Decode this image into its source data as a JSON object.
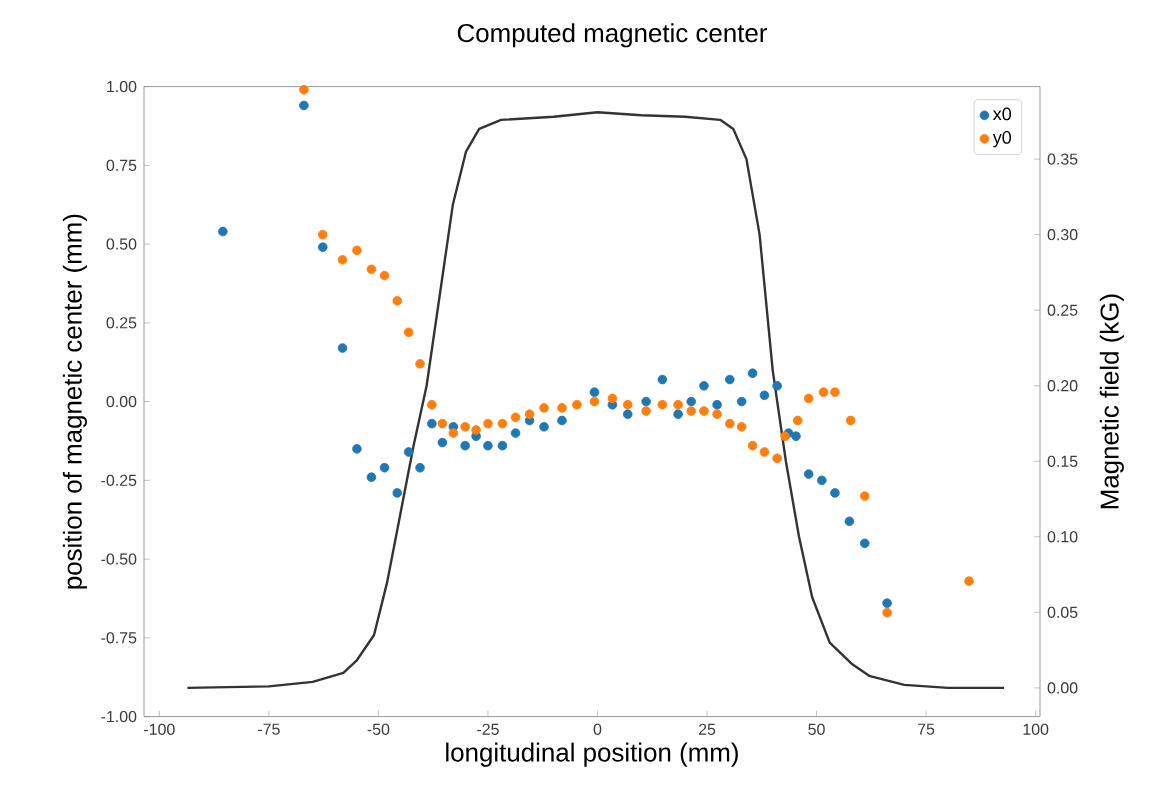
{
  "chart_data": {
    "type": "scatter",
    "title": "Computed magnetic center",
    "xlabel": "longitudinal position (mm)",
    "ylabel": "position of magnetic center (mm)",
    "y2label": "Magnetic field (kG)",
    "xlim": [
      -103.5,
      101
    ],
    "xticks": [
      -100,
      -75,
      -50,
      -25,
      0,
      25,
      50,
      75,
      100
    ],
    "ylim": [
      -1,
      1
    ],
    "yticks": [
      {
        "value": -1,
        "label": "-1.00"
      },
      {
        "value": -0.75,
        "label": "-0.75"
      },
      {
        "value": -0.5,
        "label": "-0.50"
      },
      {
        "value": -0.25,
        "label": "-0.25"
      },
      {
        "value": 0,
        "label": "0.00"
      },
      {
        "value": 0.25,
        "label": "0.25"
      },
      {
        "value": 0.5,
        "label": "0.50"
      },
      {
        "value": 0.75,
        "label": "0.75"
      },
      {
        "value": 1,
        "label": "1.00"
      }
    ],
    "y2lim": [
      -0.019,
      0.398
    ],
    "y2ticks": [
      {
        "value": 0,
        "label": "0.00"
      },
      {
        "value": 0.05,
        "label": "0.05"
      },
      {
        "value": 0.1,
        "label": "0.10"
      },
      {
        "value": 0.15,
        "label": "0.15"
      },
      {
        "value": 0.2,
        "label": "0.20"
      },
      {
        "value": 0.25,
        "label": "0.25"
      },
      {
        "value": 0.3,
        "label": "0.30"
      },
      {
        "value": 0.35,
        "label": "0.35"
      }
    ],
    "legend": "top right",
    "series": [
      {
        "name": "x0",
        "color": "#1f77b4",
        "marker": "circle",
        "x": [
          -85.5,
          -67.0,
          -62.7,
          -58.2,
          -54.9,
          -51.6,
          -48.6,
          -45.7,
          -43.1,
          -40.5,
          -37.8,
          -35.4,
          -32.9,
          -30.2,
          -27.7,
          -25.0,
          -21.7,
          -18.7,
          -15.5,
          -12.2,
          -8.1,
          -0.7,
          3.4,
          6.9,
          11.1,
          14.8,
          18.4,
          21.4,
          24.3,
          27.3,
          30.2,
          32.9,
          35.4,
          38.1,
          41.0,
          43.6,
          45.3,
          48.2,
          51.2,
          54.2,
          57.5,
          61.0,
          66.1
        ],
        "values": [
          0.54,
          0.94,
          0.49,
          0.17,
          -0.15,
          -0.24,
          -0.21,
          -0.29,
          -0.16,
          -0.21,
          -0.07,
          -0.13,
          -0.08,
          -0.14,
          -0.11,
          -0.14,
          -0.14,
          -0.1,
          -0.06,
          -0.08,
          -0.06,
          0.03,
          -0.01,
          -0.04,
          0.0,
          0.07,
          -0.04,
          0.0,
          0.05,
          -0.01,
          0.07,
          0.0,
          0.09,
          0.02,
          0.05,
          -0.1,
          -0.11,
          -0.23,
          -0.25,
          -0.29,
          -0.38,
          -0.45,
          -0.64
        ]
      },
      {
        "name": "y0",
        "color": "#ff7f0e",
        "marker": "circle",
        "x": [
          -67.0,
          -62.7,
          -58.2,
          -54.9,
          -51.6,
          -48.6,
          -45.7,
          -43.1,
          -40.5,
          -37.8,
          -35.4,
          -32.9,
          -30.2,
          -27.7,
          -25.0,
          -21.7,
          -18.7,
          -15.5,
          -12.2,
          -8.1,
          -4.7,
          -0.7,
          3.4,
          6.9,
          11.1,
          14.8,
          18.4,
          21.4,
          24.3,
          27.3,
          30.2,
          32.9,
          35.4,
          38.1,
          41.0,
          42.8,
          45.7,
          48.2,
          51.6,
          54.2,
          57.8,
          61.0,
          66.1,
          84.8
        ],
        "values": [
          0.99,
          0.53,
          0.45,
          0.48,
          0.42,
          0.4,
          0.32,
          0.22,
          0.12,
          -0.01,
          -0.07,
          -0.1,
          -0.08,
          -0.09,
          -0.07,
          -0.07,
          -0.05,
          -0.04,
          -0.02,
          -0.02,
          -0.01,
          0.0,
          0.01,
          -0.01,
          -0.03,
          -0.01,
          -0.01,
          -0.03,
          -0.03,
          -0.04,
          -0.07,
          -0.08,
          -0.14,
          -0.16,
          -0.18,
          -0.11,
          -0.06,
          0.01,
          0.03,
          0.03,
          -0.06,
          -0.3,
          -0.67,
          -0.57
        ]
      },
      {
        "type": "line",
        "axis": "y2",
        "color": "#333333",
        "marker": "none",
        "x": [
          -93.6,
          -75,
          -65,
          -58,
          -55,
          -51,
          -48,
          -45,
          -42,
          -39,
          -36,
          -33,
          -30,
          -27,
          -22,
          -10,
          0,
          10,
          20,
          28,
          31,
          34,
          37,
          40,
          43,
          46,
          49,
          53,
          58,
          62,
          70,
          80,
          92.8
        ],
        "values": [
          0,
          0.001,
          0.004,
          0.01,
          0.018,
          0.035,
          0.07,
          0.115,
          0.16,
          0.2,
          0.26,
          0.32,
          0.355,
          0.37,
          0.376,
          0.378,
          0.381,
          0.379,
          0.378,
          0.376,
          0.37,
          0.35,
          0.3,
          0.21,
          0.15,
          0.1,
          0.06,
          0.03,
          0.016,
          0.008,
          0.002,
          0,
          0
        ]
      }
    ]
  }
}
